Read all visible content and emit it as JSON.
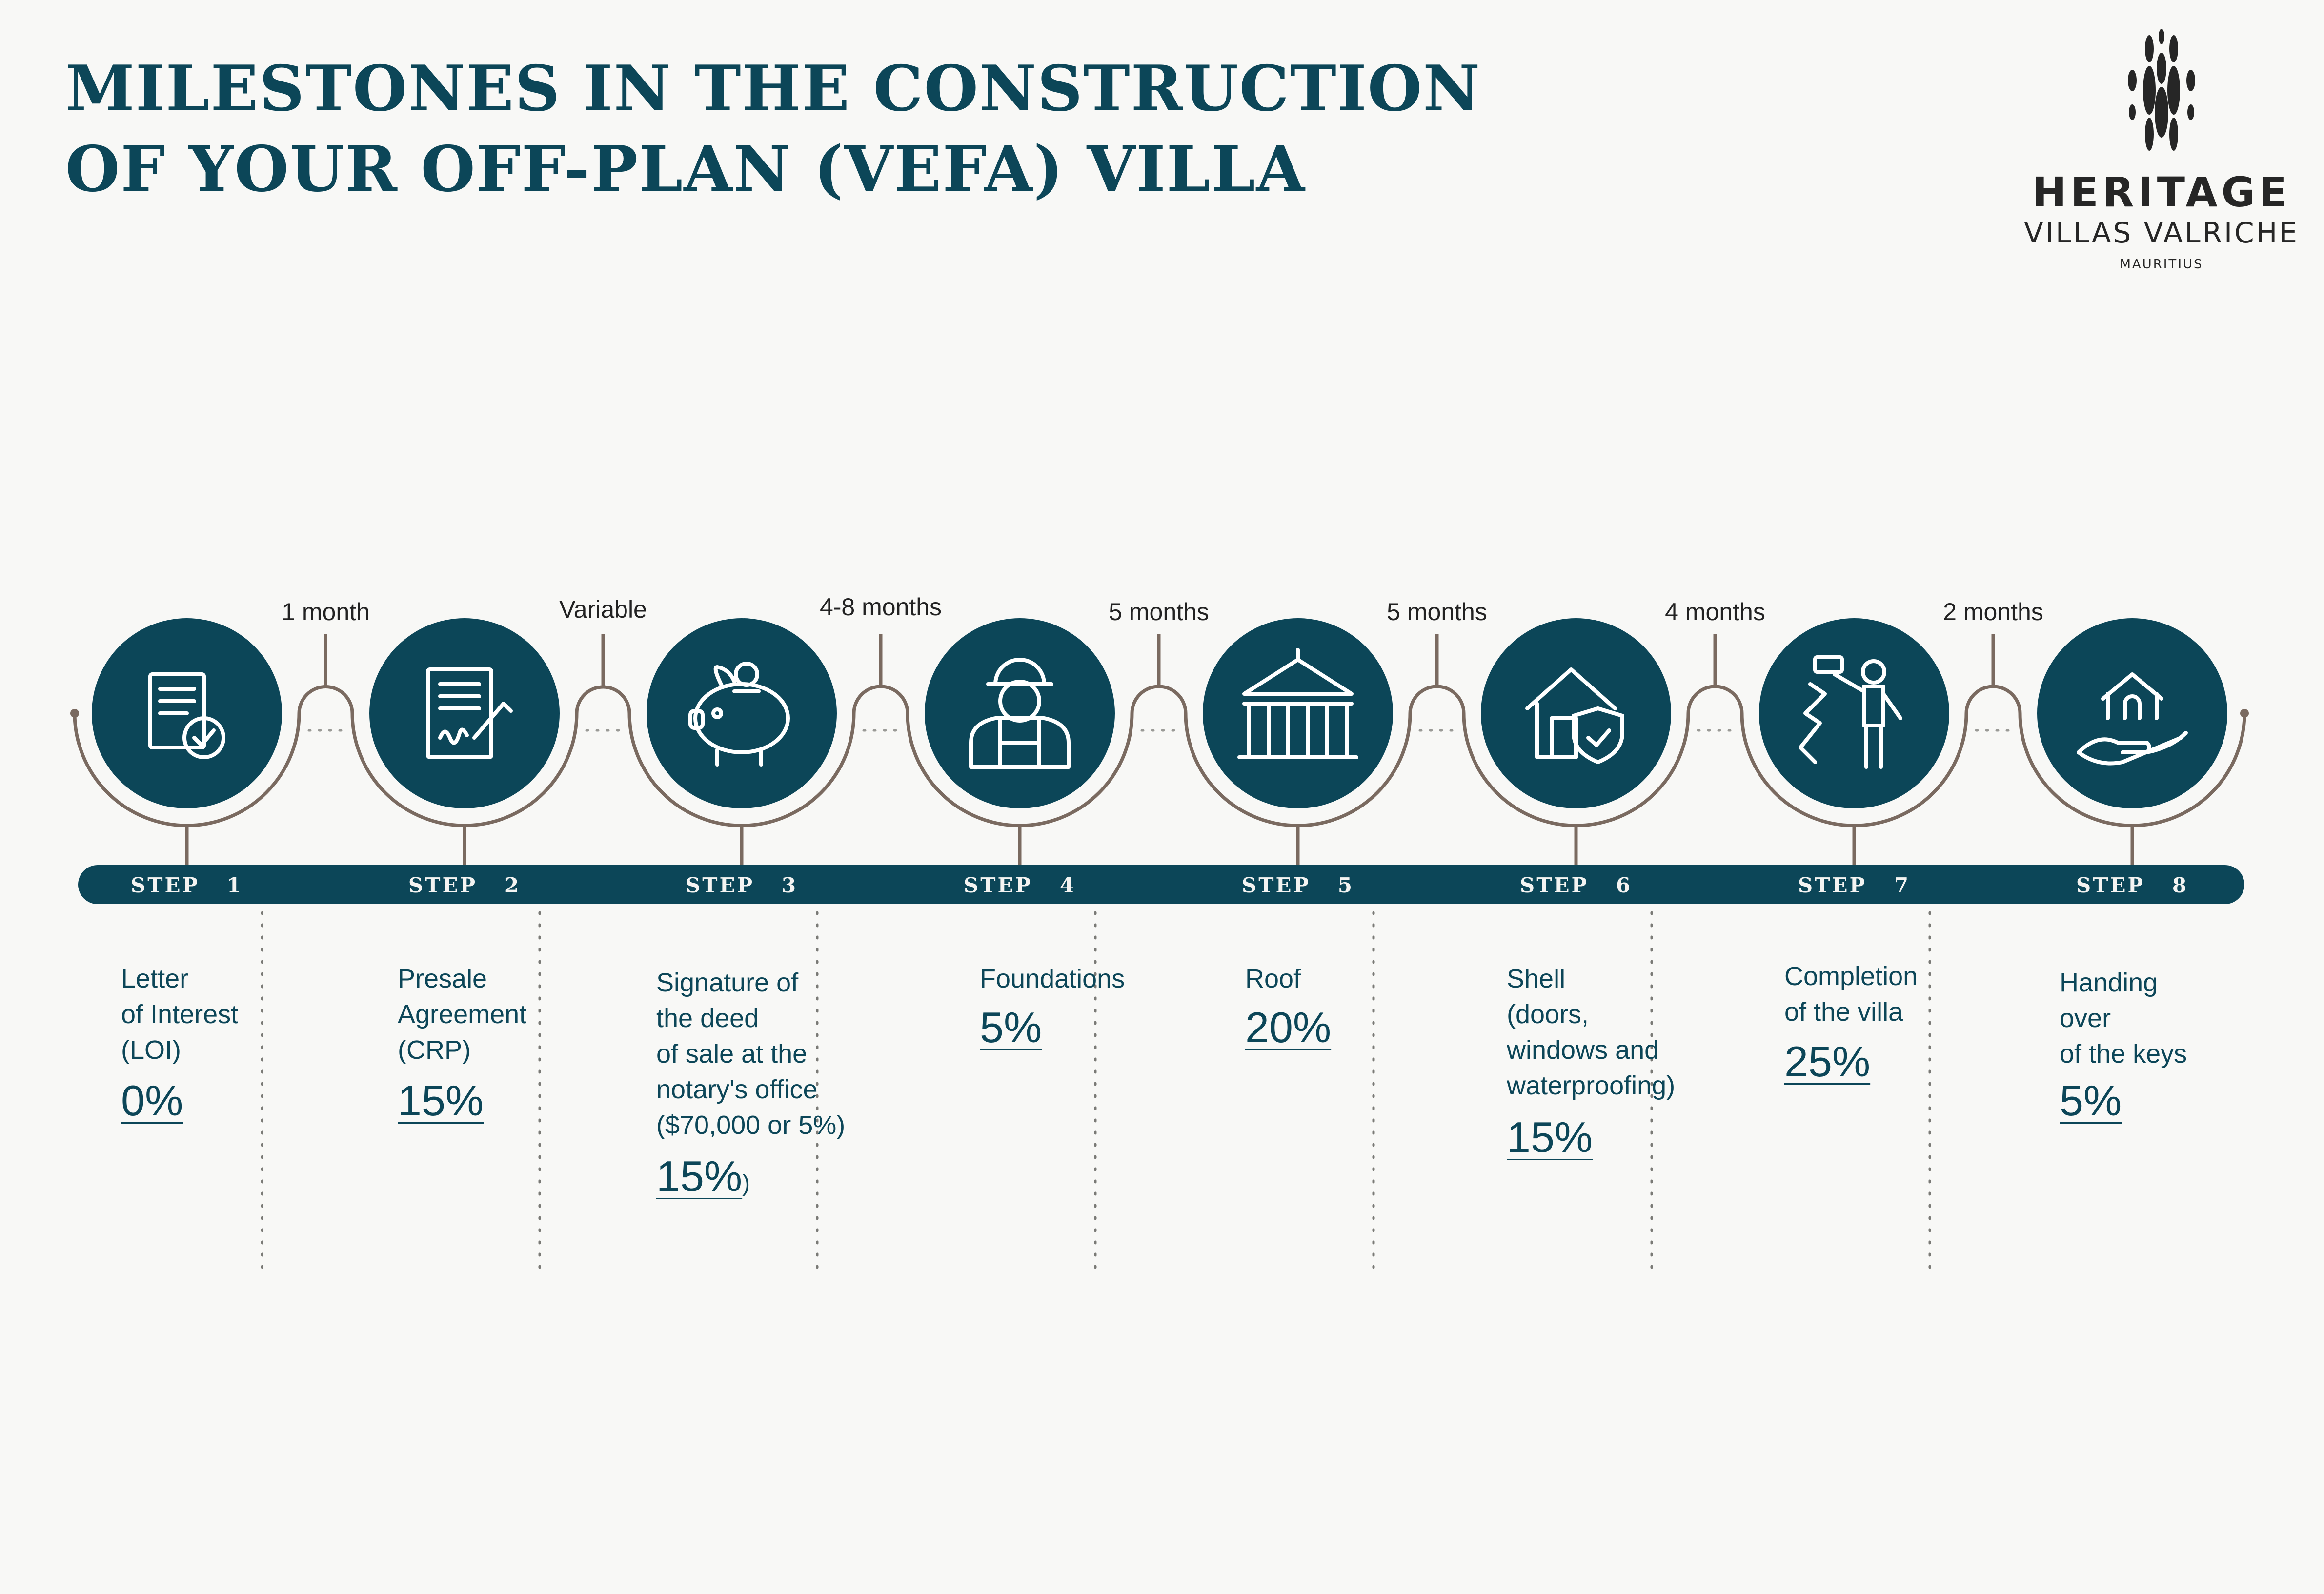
{
  "title": {
    "line1": "MILESTONES IN THE CONSTRUCTION",
    "line2": "OF YOUR OFF-PLAN (VEFA) VILLA"
  },
  "logo": {
    "name": "HERITAGE",
    "sub": "VILLAS VALRICHE",
    "location": "MAURITIUS"
  },
  "colors": {
    "primary": "#0c4658",
    "connector": "#7a6a60",
    "background": "#f8f8f6"
  },
  "durations": [
    "1 month",
    "Variable",
    "4-8 months",
    "5 months",
    "5 months",
    "4 months",
    "2 months"
  ],
  "steps": [
    {
      "label": "STEP   1",
      "icon": "document-check-icon",
      "description": [
        "Letter",
        "of Interest",
        "(LOI)"
      ],
      "percent": "0%"
    },
    {
      "label": "STEP   2",
      "icon": "signed-contract-icon",
      "description": [
        "Presale",
        "Agreement",
        "(CRP)"
      ],
      "percent": "15%"
    },
    {
      "label": "STEP   3",
      "icon": "piggy-bank-icon",
      "description": [
        "Signature of",
        "the deed",
        "of sale at the",
        "notary's office",
        "($70,000 or  5%)"
      ],
      "percent": "15%",
      "percent_suffix": ")"
    },
    {
      "label": "STEP   4",
      "icon": "construction-worker-icon",
      "description": [
        "Foundations"
      ],
      "percent": "5%"
    },
    {
      "label": "STEP   5",
      "icon": "roof-structure-icon",
      "description": [
        "Roof"
      ],
      "percent": "20%"
    },
    {
      "label": "STEP   6",
      "icon": "house-shield-icon",
      "description": [
        "Shell",
        "(doors,",
        "windows and",
        "waterproofing)"
      ],
      "percent": "15%"
    },
    {
      "label": "STEP   7",
      "icon": "painter-icon",
      "description": [
        "Completion",
        "of the villa"
      ],
      "percent": "25%"
    },
    {
      "label": "STEP   8",
      "icon": "house-in-hand-icon",
      "description": [
        "Handing",
        "over",
        "of the keys"
      ],
      "percent": "5%"
    }
  ]
}
